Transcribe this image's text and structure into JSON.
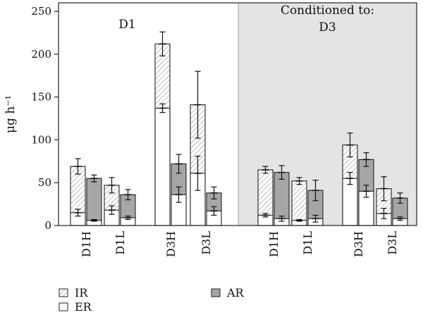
{
  "chart_data": {
    "type": "bar",
    "ylabel": "μg h⁻¹",
    "ylim": [
      0,
      260
    ],
    "yticks": [
      0,
      50,
      100,
      150,
      200,
      250
    ],
    "colors": {
      "IR": "#ffffff",
      "ER": "#ffffff",
      "AR": "#a6a6a6",
      "panel_shade": "#e4e4e4",
      "hatch": "#9a9a9a"
    },
    "panels": [
      {
        "label_lines": [
          "D1"
        ],
        "shaded": false
      },
      {
        "label_lines": [
          "Conditioned to:",
          "D3"
        ],
        "shaded": true
      }
    ],
    "legend": [
      {
        "key": "IR",
        "label": "IR",
        "style": "hatched"
      },
      {
        "key": "ER",
        "label": "ER",
        "style": "white"
      },
      {
        "key": "AR",
        "label": "AR",
        "style": "gray"
      }
    ],
    "groups": [
      {
        "label": "D1H",
        "panel": 0,
        "total": 69,
        "total_err": 9,
        "er": 15,
        "er_err": 4,
        "ar": 55,
        "ar_err": 4,
        "ar_inner": 6,
        "ar_inner_err": 1
      },
      {
        "label": "D1L",
        "panel": 0,
        "total": 47,
        "total_err": 9,
        "er": 18,
        "er_err": 5,
        "ar": 36,
        "ar_err": 6,
        "ar_inner": 9,
        "ar_inner_err": 2
      },
      {
        "label": "D3H",
        "panel": 0,
        "total": 212,
        "total_err": 14,
        "er": 137,
        "er_err": 5,
        "ar": 72,
        "ar_err": 11,
        "ar_inner": 36,
        "ar_inner_err": 9
      },
      {
        "label": "D3L",
        "panel": 0,
        "total": 141,
        "total_err": 39,
        "er": 61,
        "er_err": 20,
        "ar": 38,
        "ar_err": 7,
        "ar_inner": 17,
        "ar_inner_err": 5
      },
      {
        "label": "D1H",
        "panel": 1,
        "total": 65,
        "total_err": 4,
        "er": 12,
        "er_err": 2,
        "ar": 62,
        "ar_err": 8,
        "ar_inner": 8,
        "ar_inner_err": 3
      },
      {
        "label": "D1L",
        "panel": 1,
        "total": 52,
        "total_err": 4,
        "er": 6,
        "er_err": 1,
        "ar": 41,
        "ar_err": 12,
        "ar_inner": 8,
        "ar_inner_err": 4
      },
      {
        "label": "D3H",
        "panel": 1,
        "total": 94,
        "total_err": 14,
        "er": 55,
        "er_err": 7,
        "ar": 77,
        "ar_err": 8,
        "ar_inner": 40,
        "ar_inner_err": 7
      },
      {
        "label": "D3L",
        "panel": 1,
        "total": 43,
        "total_err": 14,
        "er": 14,
        "er_err": 6,
        "ar": 32,
        "ar_err": 6,
        "ar_inner": 8,
        "ar_inner_err": 2
      }
    ]
  }
}
